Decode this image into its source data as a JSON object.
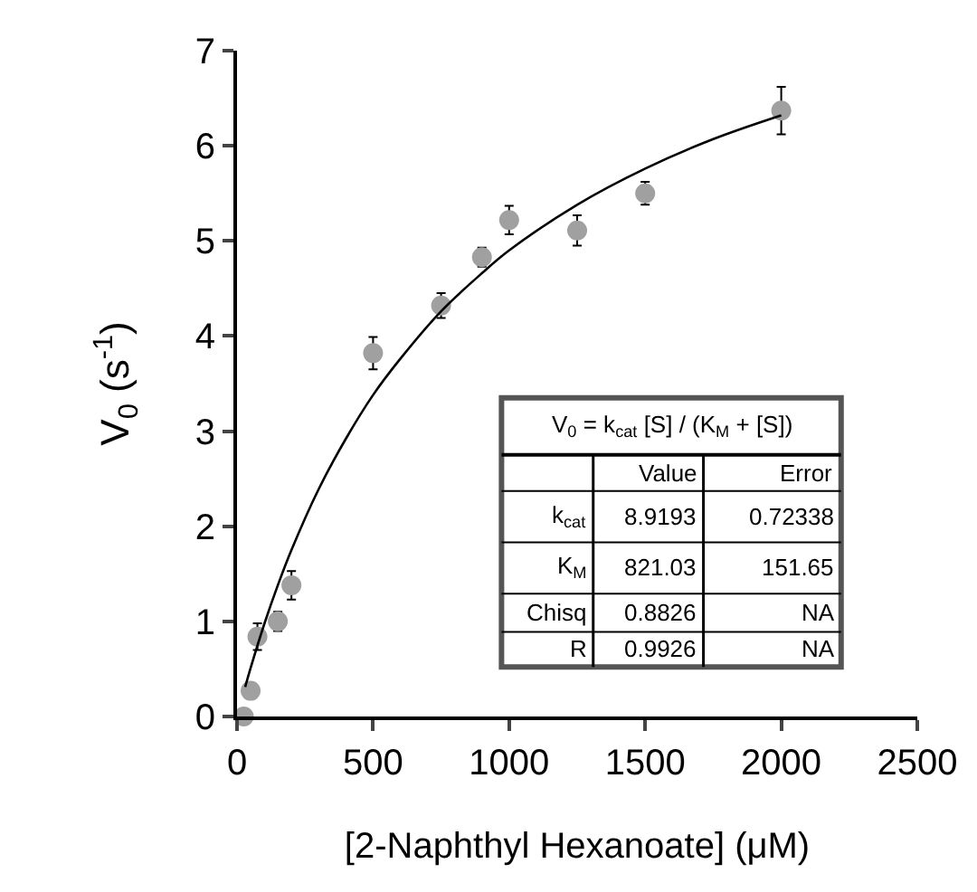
{
  "chart_data": {
    "type": "scatter",
    "xlabel": "[2-Naphthyl Hexanoate] (μM)",
    "ylabel": "V$_{0}$ (s$^{-1}$)",
    "xlim": [
      0,
      2500
    ],
    "xticks": [
      0,
      500,
      1000,
      1500,
      2000,
      2500
    ],
    "ylim": [
      0,
      7
    ],
    "yticks": [
      0,
      1,
      2,
      3,
      4,
      5,
      6,
      7
    ],
    "series": [
      {
        "marker": "circle",
        "color": "#a0a0a0",
        "x": [
          25,
          50,
          75,
          150,
          200,
          500,
          750,
          900,
          1000,
          1250,
          1500,
          2000
        ],
        "values": [
          0,
          0.27,
          0.84,
          1.0,
          1.38,
          3.82,
          4.32,
          4.83,
          5.22,
          5.11,
          5.5,
          6.37
        ],
        "errors": [
          null,
          null,
          0.14,
          0.1,
          0.15,
          0.17,
          0.13,
          0.1,
          0.15,
          0.16,
          0.12,
          0.25
        ]
      },
      {
        "type": "line",
        "color": "#000000",
        "x": [
          30,
          50,
          100,
          150,
          200,
          300,
          400,
          500,
          600,
          750,
          900,
          1000,
          1250,
          1500,
          1750,
          2000
        ],
        "values": [
          0.31,
          0.51,
          0.97,
          1.38,
          1.75,
          2.39,
          2.92,
          3.38,
          3.76,
          4.26,
          4.66,
          4.9,
          5.38,
          5.76,
          6.07,
          6.32
        ]
      }
    ],
    "annotations": [
      "V$_{0}$ = k$_{cat}$ [S] / (K$_{M}$ + [S])",
      "Value",
      "Error",
      "k$_{cat}$",
      "8.9193",
      "0.72338",
      "K$_{M}$",
      "821.03",
      "151.65",
      "Chisq",
      "0.8826",
      "NA",
      "R",
      "0.9926",
      "NA"
    ]
  }
}
